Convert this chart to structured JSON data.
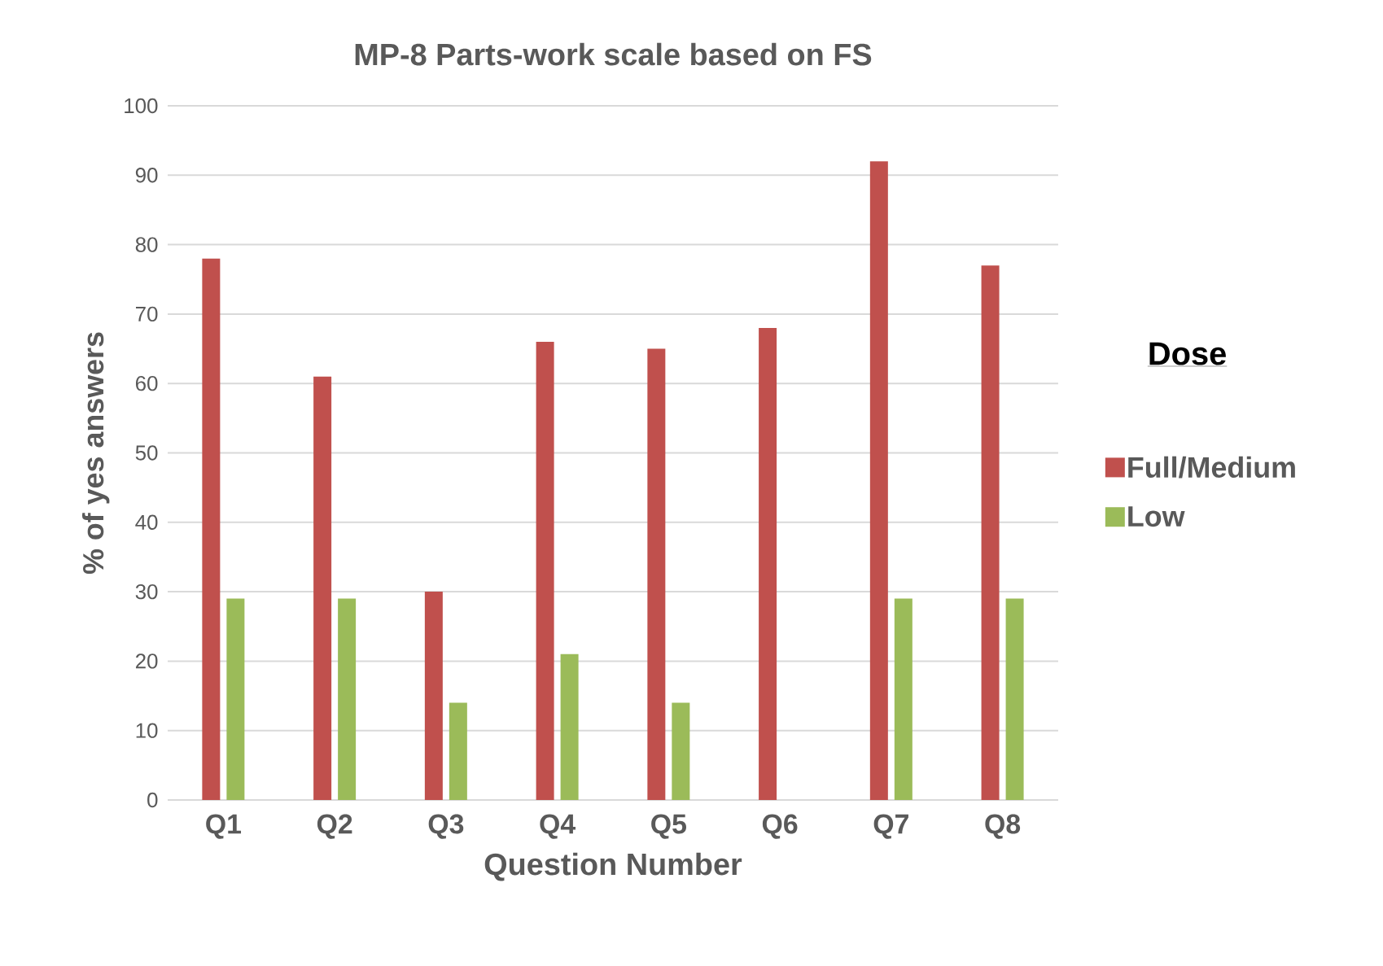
{
  "chart_data": {
    "type": "bar",
    "title": "MP-8 Parts-work scale based on FS",
    "xlabel": "Question Number",
    "ylabel": "% of yes answers",
    "legend_title": "Dose",
    "categories": [
      "Q1",
      "Q2",
      "Q3",
      "Q4",
      "Q5",
      "Q6",
      "Q7",
      "Q8"
    ],
    "series": [
      {
        "name": "Full/Medium",
        "color": "#c0504d",
        "values": [
          78,
          61,
          30,
          66,
          65,
          68,
          92,
          77
        ]
      },
      {
        "name": "Low",
        "color": "#9bbb59",
        "values": [
          29,
          29,
          14,
          21,
          14,
          0,
          29,
          29
        ]
      }
    ],
    "ylim": [
      0,
      100
    ],
    "yticks": [
      0,
      10,
      20,
      30,
      40,
      50,
      60,
      70,
      80,
      90,
      100
    ],
    "grid": "y",
    "legend": "right"
  }
}
